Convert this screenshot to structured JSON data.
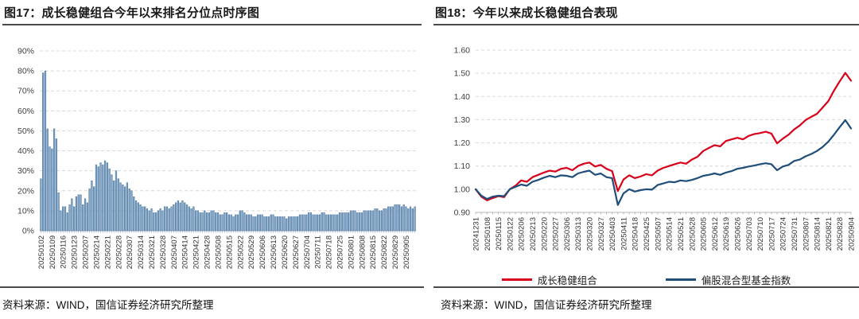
{
  "figures": [
    {
      "title": "图17：成长稳健组合今年以来排名分位点时序图",
      "source": "资料来源：WIND，国信证券经济研究所整理"
    },
    {
      "title": "图18：今年以来成长稳健组合表现",
      "source": "资料来源：WIND，国信证券经济研究所整理"
    }
  ],
  "chart_data": [
    {
      "type": "bar",
      "title": "成长稳健组合今年以来排名分位点时序图",
      "ylim": [
        0,
        90
      ],
      "yticks": [
        0,
        10,
        20,
        30,
        40,
        50,
        60,
        70,
        80,
        90
      ],
      "ytick_format": "percent",
      "grid": true,
      "bar_color": "#7FA6C9",
      "bar_edge": "#476F9A",
      "label_every": 5,
      "x_tick_labels": [
        "20250102",
        "20250109",
        "20250116",
        "20250123",
        "20250207",
        "20250214",
        "20250221",
        "20250228",
        "20250307",
        "20250314",
        "20250321",
        "20250328",
        "20250407",
        "20250414",
        "20250421",
        "20250428",
        "20250508",
        "20250515",
        "20250522",
        "20250529",
        "20250606",
        "20250613",
        "20250620",
        "20250627",
        "20250704",
        "20250711",
        "20250718",
        "20250725",
        "20250801",
        "20250808",
        "20250815",
        "20250822",
        "20250829",
        "20250905"
      ],
      "values": [
        26,
        79,
        80,
        51,
        42,
        41,
        51,
        46,
        19,
        10,
        12,
        12,
        9,
        13,
        16,
        12,
        17,
        18,
        18,
        13,
        16,
        14,
        21,
        25,
        22,
        33,
        32,
        34,
        33,
        35,
        34,
        31,
        28,
        25,
        30,
        26,
        24,
        23,
        22,
        24,
        21,
        20,
        17,
        15,
        14,
        13,
        12,
        12,
        11,
        10,
        11,
        9,
        9,
        10,
        11,
        10,
        12,
        12,
        11,
        12,
        13,
        14,
        15,
        14,
        15,
        14,
        13,
        12,
        11,
        12,
        10,
        10,
        9,
        9,
        10,
        9,
        9,
        10,
        10,
        9,
        9,
        8,
        8,
        9,
        9,
        8,
        8,
        7,
        8,
        8,
        10,
        10,
        9,
        8,
        8,
        8,
        7,
        7,
        8,
        8,
        8,
        7,
        7,
        7,
        8,
        8,
        7,
        7,
        7,
        7,
        7,
        6,
        7,
        7,
        7,
        7,
        7,
        8,
        8,
        8,
        8,
        9,
        9,
        8,
        8,
        8,
        8,
        9,
        9,
        8,
        8,
        8,
        8,
        8,
        8,
        9,
        9,
        9,
        9,
        9,
        10,
        10,
        10,
        9,
        9,
        9,
        10,
        10,
        10,
        10,
        10,
        11,
        11,
        10,
        10,
        11,
        11,
        12,
        12,
        12,
        13,
        13,
        13,
        12,
        13,
        12,
        11,
        12,
        11,
        12
      ]
    },
    {
      "type": "line",
      "title": "今年以来成长稳健组合表现",
      "ylim": [
        0.9,
        1.6
      ],
      "yticks": [
        0.9,
        1.0,
        1.1,
        1.2,
        1.3,
        1.4,
        1.5,
        1.6
      ],
      "ytick_format": "fixed2",
      "grid": true,
      "legend_position": "bottom",
      "x_tick_labels": [
        "20241231",
        "20250108",
        "20250115",
        "20250122",
        "20250206",
        "20250213",
        "20250220",
        "20250227",
        "20250306",
        "20250313",
        "20250320",
        "20250327",
        "20250403",
        "20250411",
        "20250418",
        "20250425",
        "20250507",
        "20250514",
        "20250521",
        "20250528",
        "20250605",
        "20250612",
        "20250619",
        "20250626",
        "20250703",
        "20250710",
        "20250717",
        "20250724",
        "20250731",
        "20250807",
        "20250814",
        "20250821",
        "20250828",
        "20250904"
      ],
      "series": [
        {
          "name": "成长稳健组合",
          "color": "#D9001B",
          "values": [
            1.0,
            0.968,
            0.952,
            0.962,
            0.97,
            0.966,
            1.0,
            1.015,
            1.038,
            1.032,
            1.052,
            1.062,
            1.072,
            1.08,
            1.076,
            1.088,
            1.092,
            1.082,
            1.1,
            1.11,
            1.115,
            1.098,
            1.105,
            1.088,
            1.078,
            0.992,
            1.042,
            1.06,
            1.048,
            1.055,
            1.065,
            1.06,
            1.08,
            1.092,
            1.1,
            1.108,
            1.115,
            1.11,
            1.128,
            1.14,
            1.165,
            1.178,
            1.19,
            1.185,
            1.208,
            1.215,
            1.222,
            1.215,
            1.23,
            1.238,
            1.242,
            1.248,
            1.24,
            1.198,
            1.218,
            1.235,
            1.258,
            1.275,
            1.298,
            1.312,
            1.325,
            1.352,
            1.38,
            1.425,
            1.465,
            1.502,
            1.468
          ]
        },
        {
          "name": "偏股混合型基金指数",
          "color": "#1F4E79",
          "values": [
            1.0,
            0.972,
            0.958,
            0.968,
            0.972,
            0.97,
            1.0,
            1.01,
            1.02,
            1.015,
            1.032,
            1.04,
            1.05,
            1.058,
            1.052,
            1.06,
            1.058,
            1.052,
            1.068,
            1.075,
            1.08,
            1.062,
            1.068,
            1.052,
            1.048,
            0.932,
            0.982,
            1.0,
            0.99,
            0.996,
            1.0,
            0.998,
            1.018,
            1.025,
            1.032,
            1.03,
            1.038,
            1.035,
            1.04,
            1.048,
            1.058,
            1.062,
            1.068,
            1.062,
            1.072,
            1.078,
            1.088,
            1.092,
            1.098,
            1.102,
            1.108,
            1.112,
            1.108,
            1.082,
            1.098,
            1.105,
            1.122,
            1.128,
            1.142,
            1.152,
            1.165,
            1.182,
            1.205,
            1.235,
            1.268,
            1.298,
            1.262
          ]
        }
      ]
    }
  ]
}
